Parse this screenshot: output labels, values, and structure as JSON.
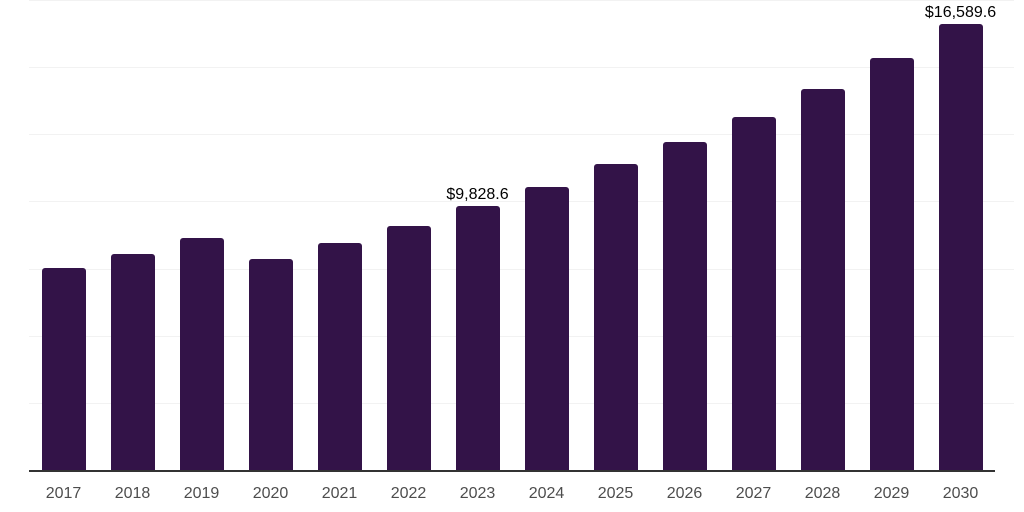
{
  "chart_data": {
    "type": "bar",
    "title": "",
    "xlabel": "",
    "ylabel": "",
    "categories": [
      "2017",
      "2018",
      "2019",
      "2020",
      "2021",
      "2022",
      "2023",
      "2024",
      "2025",
      "2026",
      "2027",
      "2028",
      "2029",
      "2030"
    ],
    "values": [
      7540,
      8060,
      8640,
      7860,
      8450,
      9070,
      9828.6,
      10540,
      11390,
      12210,
      13140,
      14190,
      15340,
      16589.6
    ],
    "data_labels": {
      "2023": "$9,828.6",
      "2030": "$16,589.6"
    },
    "ylim": [
      0,
      17500
    ],
    "gridline_step": 2500,
    "grid": true,
    "legend": false,
    "colors": {
      "bar": "#331348",
      "axis_line": "#333333",
      "gridline": "#f2f2f2",
      "tick_label": "#4d4d4d",
      "data_label": "#000000"
    }
  }
}
